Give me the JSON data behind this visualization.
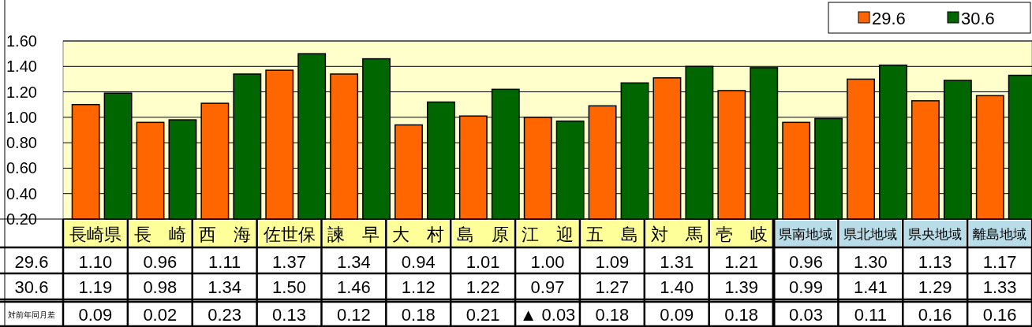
{
  "chart_data": {
    "type": "bar",
    "categories": [
      "長崎県",
      "長　崎",
      "西　海",
      "佐世保",
      "諫　早",
      "大　村",
      "島　原",
      "江　迎",
      "五　島",
      "対　馬",
      "壱　岐",
      "県南地域",
      "県北地域",
      "県央地域",
      "離島地域"
    ],
    "series": [
      {
        "name": "29.6",
        "color": "#ff6600",
        "values": [
          1.1,
          0.96,
          1.11,
          1.37,
          1.34,
          0.94,
          1.01,
          1.0,
          1.09,
          1.31,
          1.21,
          0.96,
          1.3,
          1.13,
          1.17
        ],
        "value_labels": [
          "1.10",
          "0.96",
          "1.11",
          "1.37",
          "1.34",
          "0.94",
          "1.01",
          "1.00",
          "1.09",
          "1.31",
          "1.21",
          "0.96",
          "1.30",
          "1.13",
          "1.17"
        ]
      },
      {
        "name": "30.6",
        "color": "#006600",
        "values": [
          1.19,
          0.98,
          1.34,
          1.5,
          1.46,
          1.12,
          1.22,
          0.97,
          1.27,
          1.4,
          1.39,
          0.99,
          1.41,
          1.29,
          1.33
        ],
        "value_labels": [
          "1.19",
          "0.98",
          "1.34",
          "1.50",
          "1.46",
          "1.12",
          "1.22",
          "0.97",
          "1.27",
          "1.40",
          "1.39",
          "0.99",
          "1.41",
          "1.29",
          "1.33"
        ]
      }
    ],
    "ylim": [
      0.2,
      1.6
    ],
    "yticks": [
      {
        "value": 0.2,
        "label": "0.20"
      },
      {
        "value": 0.4,
        "label": "0.40"
      },
      {
        "value": 0.6,
        "label": "0.60"
      },
      {
        "value": 0.8,
        "label": "0.80"
      },
      {
        "value": 1.0,
        "label": "1.00"
      },
      {
        "value": 1.2,
        "label": "1.20"
      },
      {
        "value": 1.4,
        "label": "1.40"
      },
      {
        "value": 1.6,
        "label": "1.60"
      }
    ],
    "grid": "y",
    "legend": "top right",
    "annotations": [
      "対前年同月差",
      "0.09",
      "0.02",
      "0.23",
      "0.13",
      "0.12",
      "0.18",
      "0.21",
      "▲ 0.03",
      "0.18",
      "0.09",
      "0.18",
      "0.03",
      "0.11",
      "0.16",
      "0.16"
    ]
  }
}
